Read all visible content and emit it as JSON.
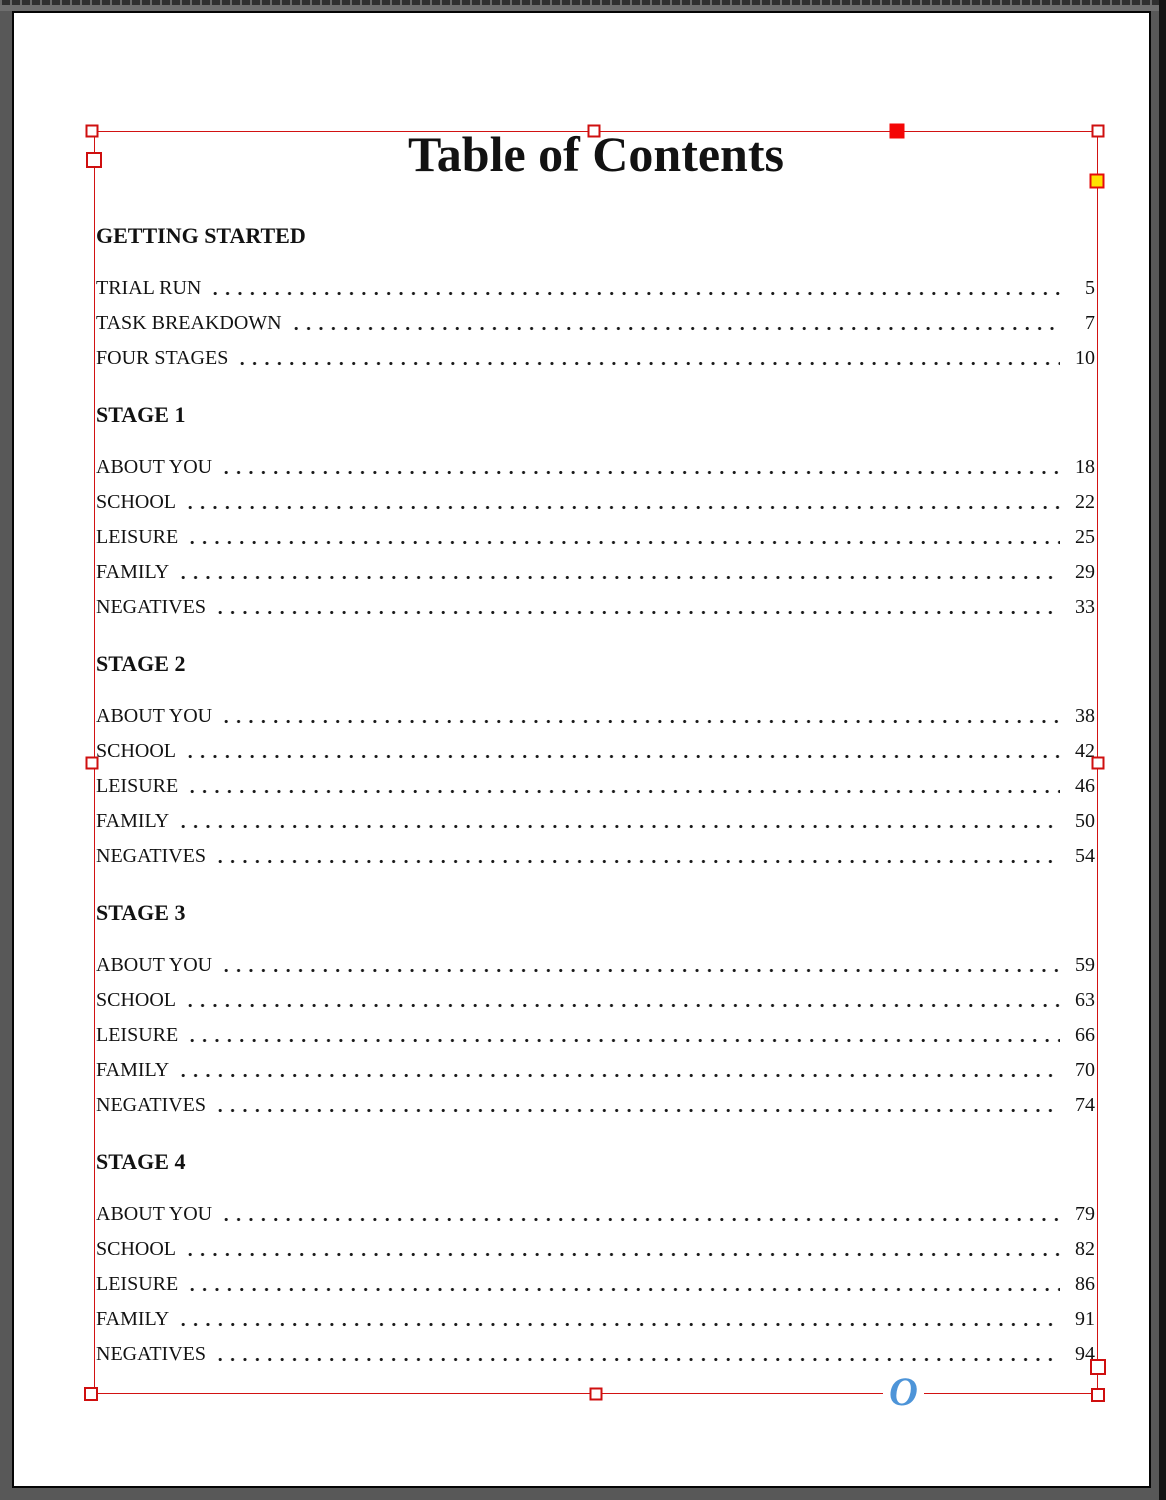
{
  "workspace": {
    "ruler_name": "horizontal-ruler"
  },
  "document": {
    "title": "Table of Contents",
    "sections": [
      {
        "heading": "GETTING STARTED",
        "entries": [
          {
            "label": "TRIAL RUN",
            "page": "5"
          },
          {
            "label": "TASK BREAKDOWN",
            "page": "7"
          },
          {
            "label": "FOUR STAGES",
            "page": "10"
          }
        ]
      },
      {
        "heading": "STAGE 1",
        "entries": [
          {
            "label": "ABOUT YOU",
            "page": "18"
          },
          {
            "label": "SCHOOL",
            "page": "22"
          },
          {
            "label": "LEISURE",
            "page": "25"
          },
          {
            "label": "FAMILY",
            "page": "29"
          },
          {
            "label": "NEGATIVES",
            "page": "33"
          }
        ]
      },
      {
        "heading": "STAGE 2",
        "entries": [
          {
            "label": "ABOUT YOU",
            "page": "38"
          },
          {
            "label": "SCHOOL",
            "page": "42"
          },
          {
            "label": "LEISURE",
            "page": "46"
          },
          {
            "label": "FAMILY",
            "page": "50"
          },
          {
            "label": "NEGATIVES",
            "page": "54"
          }
        ]
      },
      {
        "heading": "STAGE 3",
        "entries": [
          {
            "label": "ABOUT YOU",
            "page": "59"
          },
          {
            "label": "SCHOOL",
            "page": "63"
          },
          {
            "label": "LEISURE",
            "page": "66"
          },
          {
            "label": "FAMILY",
            "page": "70"
          },
          {
            "label": "NEGATIVES",
            "page": "74"
          }
        ]
      },
      {
        "heading": "STAGE 4",
        "entries": [
          {
            "label": "ABOUT YOU",
            "page": "79"
          },
          {
            "label": "SCHOOL",
            "page": "82"
          },
          {
            "label": "LEISURE",
            "page": "86"
          },
          {
            "label": "FAMILY",
            "page": "91"
          },
          {
            "label": "NEGATIVES",
            "page": "94"
          }
        ]
      }
    ],
    "footer_glyph": "O"
  },
  "selection": {
    "frame_color": "#d21212",
    "solid_handle_color": "#f40606",
    "corner_editor_color": "#ffe300"
  }
}
